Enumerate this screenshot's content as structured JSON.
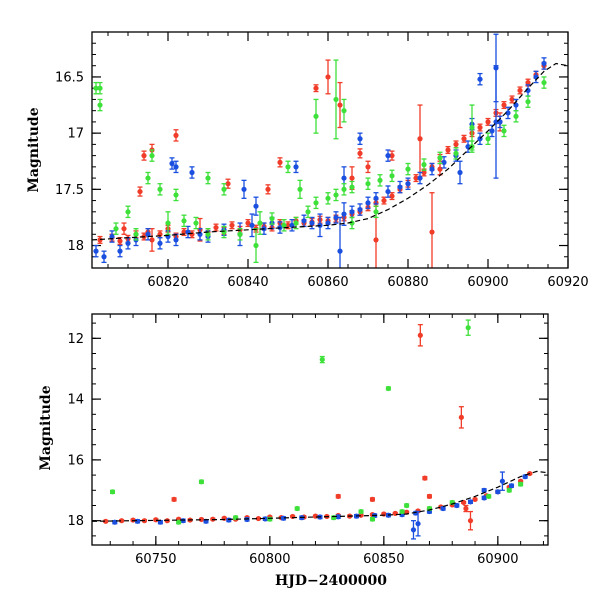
{
  "colors": {
    "red": "#f03c28",
    "blue": "#1a4fe0",
    "green": "#3ee03a",
    "fit": "#000000",
    "frame": "#000000"
  },
  "chart_data": [
    {
      "type": "scatter",
      "title": "",
      "xlabel": "",
      "ylabel": "Magnitude",
      "xlim": [
        60801,
        60920
      ],
      "ylim": [
        18.2,
        16.1
      ],
      "y_inverted": true,
      "xticks": [
        60820,
        60840,
        60860,
        60880,
        60900,
        60920
      ],
      "yticks": [
        16.5,
        17,
        17.5,
        18
      ],
      "x_minor_step": 5,
      "y_minor_step": 0.1,
      "fit_curve": {
        "x": [
          60801,
          60810,
          60820,
          60830,
          60840,
          60850,
          60860,
          60865,
          60870,
          60875,
          60880,
          60885,
          60890,
          60895,
          60900,
          60905,
          60910,
          60914,
          60917,
          60920
        ],
        "y": [
          17.95,
          17.93,
          17.91,
          17.88,
          17.86,
          17.84,
          17.82,
          17.8,
          17.76,
          17.68,
          17.58,
          17.46,
          17.32,
          17.15,
          16.98,
          16.8,
          16.6,
          16.45,
          16.38,
          16.4
        ]
      },
      "series": [
        {
          "color": "red",
          "x": [
            60803,
            60806,
            60808,
            60810,
            60812,
            60814,
            60815,
            60816,
            60818,
            60820,
            60822,
            60824,
            60826,
            60828,
            60830,
            60832,
            60834,
            60836,
            60838,
            60840,
            60842,
            60844,
            60846,
            60848,
            60850,
            60852,
            60854,
            60856,
            60858,
            60860,
            60862,
            60864,
            60866,
            60868,
            60870,
            60872,
            60874,
            60876,
            60878,
            60880,
            60882,
            60884,
            60886,
            60888,
            60890,
            60892,
            60894,
            60896,
            60898,
            60900,
            60902,
            60904,
            60906,
            60908,
            60910,
            60912,
            60914,
            60809,
            60813,
            60814,
            60816,
            60822,
            60835,
            60845,
            60848,
            60857,
            60860,
            60863,
            60866,
            60868,
            60870,
            60872,
            60876,
            60883,
            60886,
            60888,
            60903
          ],
          "y": [
            17.95,
            17.93,
            17.96,
            17.94,
            17.9,
            17.92,
            17.88,
            17.95,
            17.9,
            17.85,
            17.92,
            17.88,
            17.9,
            17.86,
            17.88,
            17.84,
            17.87,
            17.82,
            17.86,
            17.8,
            17.85,
            17.83,
            17.84,
            17.8,
            17.82,
            17.78,
            17.8,
            17.79,
            17.77,
            17.78,
            17.76,
            17.75,
            17.72,
            17.7,
            17.66,
            17.62,
            17.6,
            17.56,
            17.5,
            17.45,
            17.4,
            17.35,
            17.3,
            17.22,
            17.15,
            17.1,
            17.05,
            17.0,
            16.95,
            16.9,
            16.82,
            16.75,
            16.7,
            16.62,
            16.55,
            16.48,
            16.4,
            17.85,
            17.52,
            17.2,
            17.15,
            17.02,
            17.45,
            17.5,
            17.26,
            16.6,
            16.5,
            16.75,
            17.4,
            17.18,
            17.3,
            17.95,
            17.2,
            17.05,
            17.88,
            17.32,
            16.9
          ],
          "err": [
            0.03,
            0.03,
            0.03,
            0.03,
            0.03,
            0.03,
            0.03,
            0.1,
            0.03,
            0.03,
            0.03,
            0.03,
            0.03,
            0.1,
            0.03,
            0.03,
            0.03,
            0.03,
            0.03,
            0.03,
            0.03,
            0.03,
            0.03,
            0.03,
            0.03,
            0.03,
            0.03,
            0.03,
            0.03,
            0.03,
            0.03,
            0.03,
            0.03,
            0.03,
            0.03,
            0.03,
            0.03,
            0.03,
            0.03,
            0.03,
            0.03,
            0.03,
            0.03,
            0.03,
            0.03,
            0.03,
            0.03,
            0.03,
            0.03,
            0.03,
            0.03,
            0.03,
            0.03,
            0.03,
            0.03,
            0.03,
            0.03,
            0.05,
            0.04,
            0.04,
            0.05,
            0.05,
            0.04,
            0.04,
            0.04,
            0.03,
            0.15,
            0.2,
            0.1,
            0.04,
            0.05,
            0.3,
            0.04,
            0.3,
            0.35,
            0.05,
            0.08
          ]
        },
        {
          "color": "blue",
          "x": [
            60802,
            60804,
            60806,
            60808,
            60810,
            60812,
            60815,
            60818,
            60820,
            60822,
            60825,
            60828,
            60830,
            60834,
            60838,
            60841,
            60844,
            60846,
            60848,
            60851,
            60854,
            60856,
            60858,
            60860,
            60862,
            60864,
            60866,
            60868,
            60870,
            60872,
            60875,
            60878,
            60880,
            60883,
            60886,
            60889,
            60892,
            60895,
            60898,
            60901,
            60903,
            60905,
            60907,
            60910,
            60912,
            60914,
            60821,
            60822,
            60826,
            60839,
            60842,
            60852,
            60863,
            60864,
            60868,
            60875,
            60893,
            60896,
            60898,
            60902,
            60902
          ],
          "y": [
            18.05,
            18.1,
            17.92,
            18.05,
            17.98,
            17.95,
            17.9,
            17.98,
            17.92,
            17.95,
            17.88,
            17.9,
            17.92,
            17.86,
            17.9,
            17.82,
            17.85,
            17.8,
            17.84,
            17.82,
            17.78,
            17.8,
            17.82,
            17.8,
            17.75,
            17.72,
            17.7,
            17.68,
            17.62,
            17.58,
            17.52,
            17.48,
            17.45,
            17.4,
            17.32,
            17.26,
            17.2,
            17.12,
            17.05,
            16.98,
            16.9,
            16.82,
            16.75,
            16.62,
            16.5,
            16.38,
            17.27,
            17.3,
            17.35,
            17.5,
            17.65,
            17.3,
            18.05,
            17.4,
            17.05,
            17.2,
            17.35,
            16.92,
            16.52,
            16.42,
            16.9
          ],
          "err": [
            0.05,
            0.05,
            0.05,
            0.05,
            0.05,
            0.05,
            0.05,
            0.05,
            0.05,
            0.05,
            0.05,
            0.05,
            0.05,
            0.05,
            0.1,
            0.1,
            0.05,
            0.05,
            0.05,
            0.05,
            0.05,
            0.05,
            0.1,
            0.05,
            0.05,
            0.1,
            0.05,
            0.05,
            0.05,
            0.05,
            0.05,
            0.05,
            0.05,
            0.05,
            0.05,
            0.05,
            0.05,
            0.05,
            0.05,
            0.05,
            0.05,
            0.05,
            0.05,
            0.05,
            0.05,
            0.05,
            0.05,
            0.05,
            0.05,
            0.08,
            0.08,
            0.05,
            0.3,
            0.1,
            0.05,
            0.05,
            0.1,
            0.05,
            0.05,
            0.3,
            0.5
          ]
        },
        {
          "color": "green",
          "x": [
            60802,
            60803,
            60807,
            60810,
            60812,
            60815,
            60818,
            60822,
            60824,
            60827,
            60830,
            60834,
            60838,
            60843,
            60846,
            60849,
            60852,
            60855,
            60857,
            60860,
            60862,
            60864,
            60866,
            60870,
            60873,
            60876,
            60880,
            60884,
            60888,
            60892,
            60896,
            60900,
            60904,
            60907,
            60910,
            60914,
            60803,
            60816,
            60820,
            60830,
            60834,
            60842,
            60850,
            60853,
            60857,
            60862,
            60864,
            60866,
            60896,
            60872
          ],
          "y": [
            16.6,
            16.75,
            17.85,
            17.7,
            17.9,
            17.4,
            17.5,
            17.55,
            17.78,
            17.8,
            17.9,
            17.88,
            17.9,
            17.8,
            17.76,
            17.82,
            17.8,
            17.7,
            17.62,
            17.58,
            17.55,
            17.5,
            17.48,
            17.45,
            17.42,
            17.38,
            17.32,
            17.28,
            17.22,
            17.18,
            17.12,
            17.05,
            16.98,
            16.85,
            16.72,
            16.55,
            16.6,
            17.2,
            17.8,
            17.4,
            17.5,
            18.0,
            17.3,
            17.5,
            16.85,
            16.7,
            16.8,
            17.8,
            16.95,
            17.7
          ],
          "err": [
            0.05,
            0.05,
            0.05,
            0.05,
            0.05,
            0.05,
            0.05,
            0.05,
            0.05,
            0.05,
            0.05,
            0.05,
            0.05,
            0.1,
            0.05,
            0.05,
            0.05,
            0.05,
            0.05,
            0.05,
            0.05,
            0.05,
            0.05,
            0.05,
            0.05,
            0.05,
            0.05,
            0.05,
            0.05,
            0.05,
            0.05,
            0.05,
            0.05,
            0.05,
            0.05,
            0.05,
            0.05,
            0.05,
            0.1,
            0.05,
            0.05,
            0.15,
            0.05,
            0.08,
            0.15,
            0.35,
            0.1,
            0.05,
            0.2,
            0.05
          ]
        }
      ]
    },
    {
      "type": "scatter",
      "title": "",
      "xlabel": "HJD−2400000",
      "ylabel": "Magnitude",
      "xlim": [
        60722,
        60922
      ],
      "ylim": [
        18.8,
        11.2
      ],
      "y_inverted": true,
      "xticks": [
        60750,
        60800,
        60850,
        60900
      ],
      "yticks": [
        12,
        14,
        16,
        18
      ],
      "x_minor_step": 10,
      "y_minor_step": 0.5,
      "fit_curve": {
        "x": [
          60722,
          60740,
          60760,
          60780,
          60800,
          60820,
          60840,
          60850,
          60860,
          60870,
          60880,
          60890,
          60900,
          60910,
          60917,
          60922
        ],
        "y": [
          18.02,
          18.0,
          17.98,
          17.96,
          17.92,
          17.88,
          17.84,
          17.82,
          17.78,
          17.65,
          17.45,
          17.2,
          16.9,
          16.55,
          16.38,
          16.42
        ]
      },
      "series": [
        {
          "color": "red",
          "x": [
            60728,
            60735,
            60740,
            60745,
            60750,
            60755,
            60760,
            60765,
            60770,
            60775,
            60780,
            60785,
            60790,
            60795,
            60800,
            60805,
            60810,
            60815,
            60820,
            60825,
            60830,
            60835,
            60840,
            60845,
            60850,
            60855,
            60860,
            60865,
            60870,
            60875,
            60880,
            60885,
            60890,
            60895,
            60900,
            60905,
            60910,
            60914,
            60758,
            60830,
            60845,
            60866,
            60868,
            60870,
            60884,
            60886,
            60888
          ],
          "y": [
            18.02,
            18.0,
            17.98,
            18.0,
            17.97,
            18.0,
            17.95,
            17.98,
            17.96,
            17.95,
            17.92,
            17.95,
            17.9,
            17.93,
            17.88,
            17.9,
            17.86,
            17.88,
            17.85,
            17.86,
            17.83,
            17.85,
            17.82,
            17.8,
            17.78,
            17.76,
            17.72,
            17.68,
            17.62,
            17.55,
            17.48,
            17.4,
            17.3,
            17.18,
            17.05,
            16.9,
            16.7,
            16.45,
            17.3,
            17.2,
            17.3,
            11.9,
            16.6,
            17.2,
            14.6,
            17.6,
            18.0
          ],
          "err": [
            0.03,
            0.03,
            0.03,
            0.03,
            0.03,
            0.03,
            0.03,
            0.03,
            0.03,
            0.03,
            0.03,
            0.03,
            0.03,
            0.03,
            0.03,
            0.03,
            0.03,
            0.03,
            0.03,
            0.03,
            0.03,
            0.03,
            0.03,
            0.03,
            0.03,
            0.03,
            0.03,
            0.03,
            0.03,
            0.03,
            0.03,
            0.03,
            0.03,
            0.03,
            0.03,
            0.03,
            0.03,
            0.03,
            0.05,
            0.05,
            0.05,
            0.35,
            0.05,
            0.05,
            0.35,
            0.1,
            0.3
          ]
        },
        {
          "color": "blue",
          "x": [
            60732,
            60742,
            60752,
            60762,
            60772,
            60782,
            60790,
            60798,
            60806,
            60814,
            60822,
            60830,
            60838,
            60846,
            60852,
            60858,
            60864,
            60870,
            60876,
            60882,
            60888,
            60894,
            60900,
            60906,
            60912,
            60863,
            60865,
            60894,
            60902
          ],
          "y": [
            18.05,
            18.02,
            18.05,
            18.0,
            18.02,
            17.98,
            17.96,
            17.94,
            17.92,
            17.9,
            17.88,
            17.87,
            17.85,
            17.83,
            17.82,
            17.8,
            17.75,
            17.7,
            17.6,
            17.5,
            17.38,
            17.25,
            17.05,
            16.85,
            16.55,
            18.3,
            18.1,
            17.0,
            16.7
          ],
          "err": [
            0.05,
            0.05,
            0.05,
            0.05,
            0.05,
            0.05,
            0.05,
            0.05,
            0.05,
            0.05,
            0.05,
            0.05,
            0.05,
            0.05,
            0.05,
            0.05,
            0.05,
            0.05,
            0.05,
            0.05,
            0.05,
            0.05,
            0.05,
            0.05,
            0.05,
            0.3,
            0.4,
            0.05,
            0.3
          ]
        },
        {
          "color": "green",
          "x": [
            60731,
            60770,
            60785,
            60812,
            60823,
            60828,
            60840,
            60845,
            60852,
            60860,
            60870,
            60880,
            60887,
            60896,
            60905,
            60910,
            60760,
            60800,
            60858
          ],
          "y": [
            17.05,
            16.72,
            17.9,
            17.6,
            12.7,
            17.9,
            17.7,
            17.95,
            13.65,
            17.5,
            17.6,
            17.4,
            11.65,
            17.2,
            17.0,
            16.8,
            18.05,
            17.95,
            17.7
          ],
          "err": [
            0.05,
            0.05,
            0.05,
            0.05,
            0.1,
            0.05,
            0.05,
            0.05,
            0.05,
            0.05,
            0.05,
            0.05,
            0.25,
            0.05,
            0.05,
            0.05,
            0.05,
            0.05,
            0.05
          ]
        }
      ]
    }
  ]
}
